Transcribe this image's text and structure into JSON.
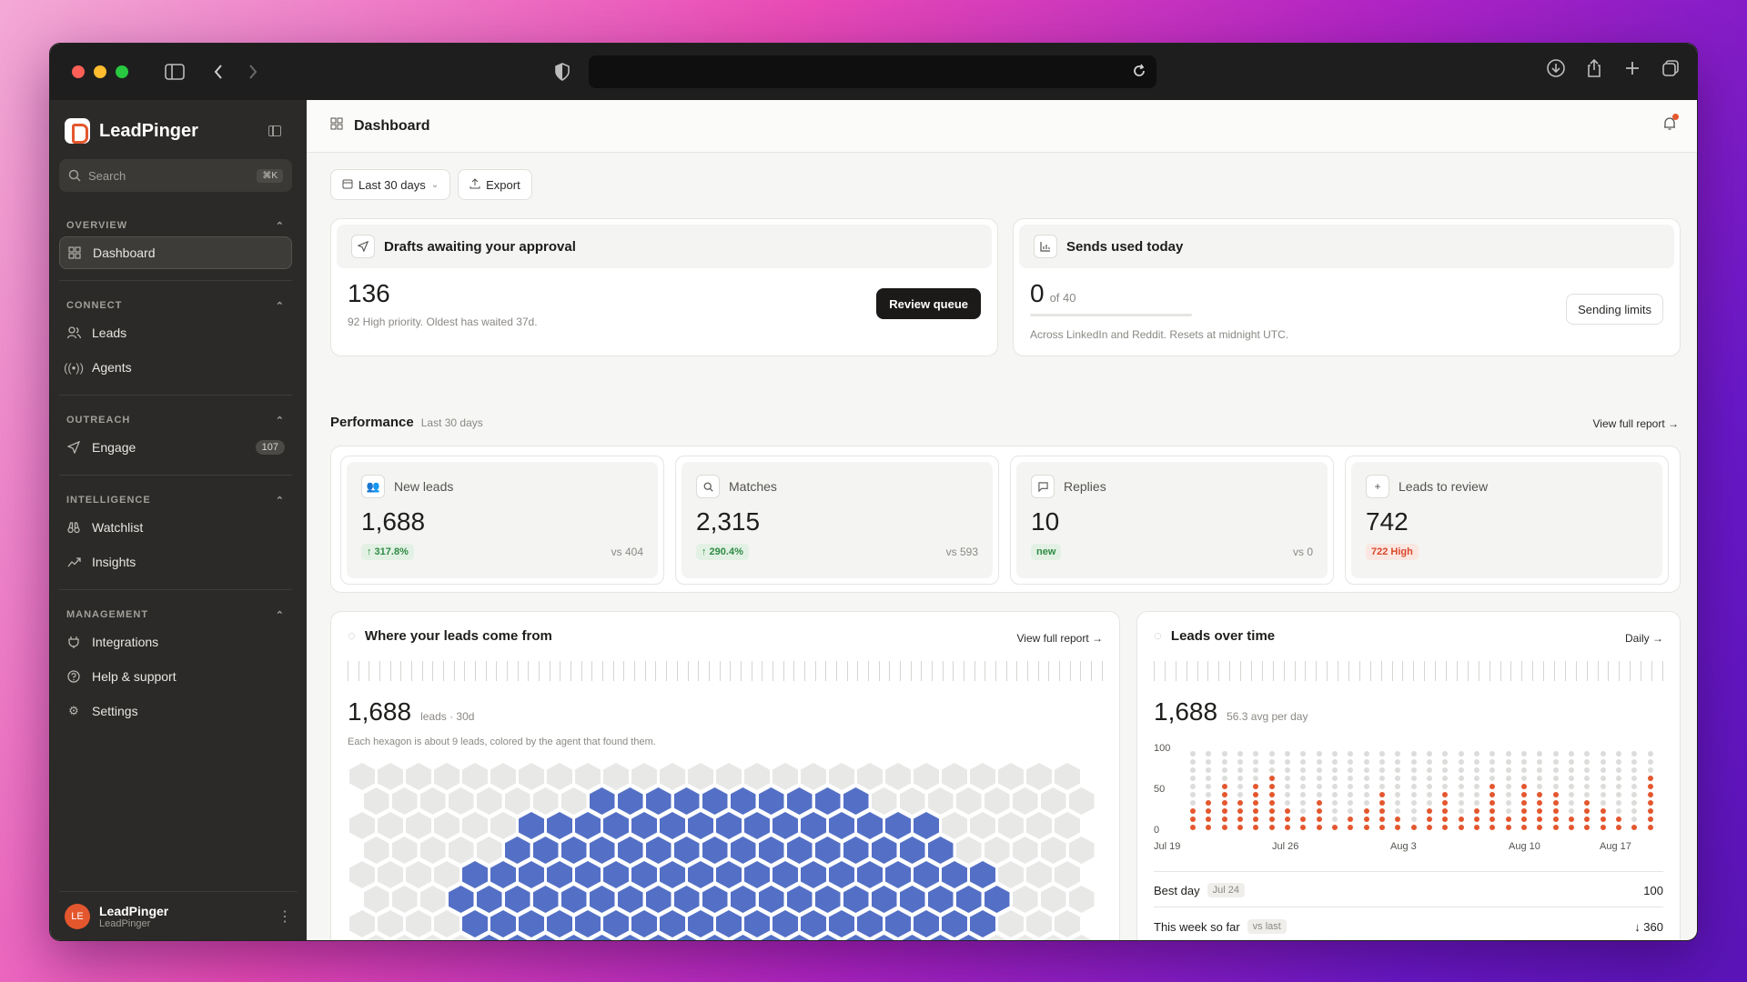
{
  "brand": {
    "name": "LeadPinger"
  },
  "search": {
    "placeholder": "Search",
    "shortcut": "⌘K"
  },
  "nav": {
    "overview": {
      "heading": "OVERVIEW",
      "items": [
        {
          "label": "Dashboard"
        }
      ]
    },
    "connect": {
      "heading": "CONNECT",
      "items": [
        {
          "label": "Leads"
        },
        {
          "label": "Agents"
        }
      ]
    },
    "outreach": {
      "heading": "OUTREACH",
      "items": [
        {
          "label": "Engage",
          "badge": "107"
        }
      ]
    },
    "intelligence": {
      "heading": "INTELLIGENCE",
      "items": [
        {
          "label": "Watchlist"
        },
        {
          "label": "Insights"
        }
      ]
    },
    "management": {
      "heading": "MANAGEMENT",
      "items": [
        {
          "label": "Integrations"
        },
        {
          "label": "Help & support"
        },
        {
          "label": "Settings"
        }
      ]
    }
  },
  "user": {
    "initials": "LE",
    "name": "LeadPinger",
    "org": "LeadPinger"
  },
  "page": {
    "title": "Dashboard"
  },
  "filters": {
    "range": "Last 30 days",
    "export": "Export"
  },
  "drafts": {
    "title": "Drafts awaiting your approval",
    "count": "136",
    "note": "92 High priority. Oldest has waited 37d.",
    "button": "Review queue"
  },
  "sends": {
    "title": "Sends used today",
    "used": "0",
    "of": "of 40",
    "progress": 0,
    "note": "Across LinkedIn and Reddit. Resets at midnight UTC.",
    "button": "Sending limits"
  },
  "performance": {
    "title": "Performance",
    "subtitle": "Last 30 days",
    "link": "View full report →",
    "metrics": [
      {
        "label": "New leads",
        "value": "1,688",
        "delta": "↑ 317.8%",
        "vs": "vs 404"
      },
      {
        "label": "Matches",
        "value": "2,315",
        "delta": "↑ 290.4%",
        "vs": "vs 593"
      },
      {
        "label": "Replies",
        "value": "10",
        "delta": "new",
        "vs": "vs 0"
      },
      {
        "label": "Leads to review",
        "value": "742",
        "delta": "722 High",
        "vs": ""
      }
    ]
  },
  "sources": {
    "title": "Where your leads come from",
    "link": "View full report →",
    "total": "1,688",
    "unit": "leads · 30d",
    "note": "Each hexagon is about 9 leads, colored by the agent that found them."
  },
  "over_time": {
    "title": "Leads over time",
    "link": "Daily →",
    "total": "1,688",
    "avg": "56.3 avg per day",
    "y_ticks": [
      "100",
      "50",
      "0"
    ],
    "x_ticks": [
      "Jul 19",
      "Jul 26",
      "Aug 3",
      "Aug 10",
      "Aug 17"
    ],
    "best_label": "Best day",
    "best_date": "Jul 24",
    "best_value": "100",
    "week_label": "This week so far",
    "week_tag": "vs last",
    "week_value": "↓ 360"
  },
  "colors": {
    "accent": "#e4572e",
    "hex_blue": "#5470c6",
    "hex_grey": "#e8e8e6",
    "dot_grey": "#dcdcda"
  }
}
